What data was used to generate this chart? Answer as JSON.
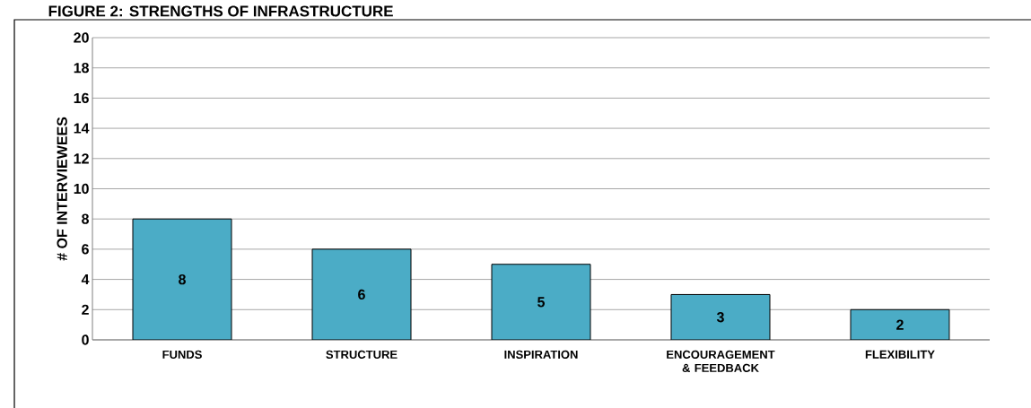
{
  "chart_data": {
    "type": "bar",
    "title": "FIGURE 2: STRENGTHS OF INFRASTRUCTURE",
    "ylabel": "# OF INTERVIEWEES",
    "categories": [
      "FUNDS",
      "STRUCTURE",
      "INSPIRATION",
      "ENCOURAGEMENT & FEEDBACK",
      "FLEXIBILITY"
    ],
    "values": [
      8,
      6,
      5,
      3,
      2
    ],
    "color": "#4bacc6",
    "ylim": [
      0,
      20
    ],
    "yticks": [
      0,
      2,
      4,
      6,
      8,
      10,
      12,
      14,
      16,
      18,
      20
    ],
    "grid": "y",
    "data_labels": true
  }
}
